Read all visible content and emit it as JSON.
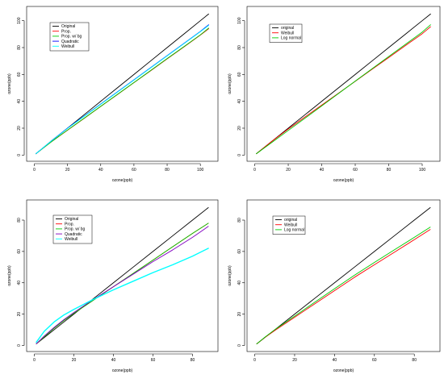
{
  "chart_data": [
    {
      "type": "line",
      "xlabel": "ozone(ppb)",
      "ylabel": "ozone(ppb)",
      "xlim": [
        0,
        106
      ],
      "ylim": [
        0,
        106
      ],
      "xticks": [
        0,
        20,
        40,
        60,
        80,
        100
      ],
      "yticks": [
        0,
        20,
        40,
        60,
        80,
        100
      ],
      "x": [
        1,
        10,
        20,
        30,
        40,
        50,
        60,
        70,
        80,
        90,
        100,
        105
      ],
      "series": [
        {
          "name": "Original",
          "color": "#000000",
          "values": [
            1,
            10,
            20,
            30,
            40,
            50,
            60,
            70,
            80,
            90,
            100,
            105
          ]
        },
        {
          "name": "Prop.",
          "color": "#ff0000",
          "values": [
            1,
            9.6,
            18.5,
            27.3,
            36.2,
            45.0,
            53.9,
            62.7,
            71.6,
            80.4,
            89.3,
            94
          ]
        },
        {
          "name": "Prop. w/ bg",
          "color": "#00cc00",
          "values": [
            1,
            9.6,
            18.6,
            27.4,
            36.3,
            45.1,
            54.0,
            62.9,
            71.8,
            80.6,
            89.5,
            94.5
          ]
        },
        {
          "name": "Quadratic",
          "color": "#0000ff",
          "values": [
            1,
            10.3,
            20,
            29,
            38,
            47,
            56,
            65,
            74,
            83,
            92,
            97
          ]
        },
        {
          "name": "Weibull",
          "color": "#00ffff",
          "values": [
            1,
            10.2,
            19.8,
            28.8,
            37.8,
            46.8,
            55.8,
            64.8,
            73.8,
            82.8,
            91.8,
            96.5
          ]
        }
      ],
      "legend_position": "top-left"
    },
    {
      "type": "line",
      "xlabel": "ozone(ppb)",
      "ylabel": "ozone(ppb)",
      "xlim": [
        0,
        106
      ],
      "ylim": [
        0,
        106
      ],
      "xticks": [
        0,
        20,
        40,
        60,
        80,
        100
      ],
      "yticks": [
        0,
        20,
        40,
        60,
        80,
        100
      ],
      "x": [
        1,
        10,
        20,
        30,
        40,
        50,
        60,
        70,
        80,
        90,
        100,
        105
      ],
      "series": [
        {
          "name": "original",
          "color": "#000000",
          "values": [
            1,
            10,
            20,
            30,
            40,
            50,
            60,
            70,
            80,
            90,
            100,
            105
          ]
        },
        {
          "name": "Weibull",
          "color": "#ff0000",
          "values": [
            1,
            10,
            19.4,
            28.3,
            37.2,
            46.0,
            54.9,
            63.8,
            72.6,
            81.5,
            90.3,
            95.5
          ]
        },
        {
          "name": "Log normal",
          "color": "#00cc00",
          "values": [
            1,
            9.2,
            18.3,
            27.4,
            36.6,
            45.8,
            55.0,
            64.2,
            73.3,
            82.4,
            91.5,
            97
          ]
        }
      ],
      "legend_position": "top-left"
    },
    {
      "type": "line",
      "xlabel": "ozone(ppb)",
      "ylabel": "ozone(ppb)",
      "xlim": [
        0,
        89
      ],
      "ylim": [
        0,
        89
      ],
      "xticks": [
        0,
        20,
        40,
        60,
        80
      ],
      "yticks": [
        0,
        20,
        40,
        60,
        80
      ],
      "x": [
        1,
        5,
        10,
        15,
        20,
        30,
        40,
        50,
        60,
        70,
        80,
        88
      ],
      "series": [
        {
          "name": "Original",
          "color": "#000000",
          "values": [
            1,
            5,
            10,
            15,
            20,
            30,
            40,
            50,
            60,
            70,
            80,
            88
          ]
        },
        {
          "name": "Prop.",
          "color": "#ff0000",
          "values": [
            1,
            5.5,
            11,
            16,
            20.5,
            29,
            37.5,
            46,
            54.5,
            63,
            71.5,
            78
          ]
        },
        {
          "name": "Prop. w/ bg",
          "color": "#00cc00",
          "values": [
            1,
            5.5,
            11,
            16,
            20.5,
            29,
            37.5,
            46,
            54.5,
            63,
            71.5,
            78
          ]
        },
        {
          "name": "Quadratic",
          "color": "#8000c0",
          "values": [
            1,
            6,
            11.5,
            16.5,
            21,
            29.5,
            37.5,
            45.5,
            53.5,
            61,
            69,
            76
          ]
        },
        {
          "name": "Weibull",
          "color": "#00ffff",
          "values": [
            2,
            9,
            15,
            19.5,
            23,
            29.5,
            35.5,
            41,
            46.5,
            51.5,
            57,
            62
          ]
        }
      ],
      "legend_position": "top-left"
    },
    {
      "type": "line",
      "xlabel": "ozone(ppb)",
      "ylabel": "ozone(ppb)",
      "xlim": [
        0,
        89
      ],
      "ylim": [
        0,
        89
      ],
      "xticks": [
        0,
        20,
        40,
        60,
        80
      ],
      "yticks": [
        0,
        20,
        40,
        60,
        80
      ],
      "x": [
        1,
        5,
        10,
        20,
        30,
        40,
        50,
        60,
        70,
        80,
        88
      ],
      "series": [
        {
          "name": "original",
          "color": "#000000",
          "values": [
            1,
            5,
            10,
            20,
            30,
            40,
            50,
            60,
            70,
            80,
            88
          ]
        },
        {
          "name": "Weibull",
          "color": "#ff0000",
          "values": [
            1,
            5,
            9.5,
            18,
            26.5,
            35,
            43.5,
            51.5,
            59.5,
            67.5,
            74
          ]
        },
        {
          "name": "Log normal",
          "color": "#00cc00",
          "values": [
            1,
            5.2,
            10,
            18.7,
            27.5,
            36.2,
            44.8,
            53,
            61,
            69,
            75.5
          ]
        }
      ],
      "legend_position": "top-left"
    }
  ]
}
